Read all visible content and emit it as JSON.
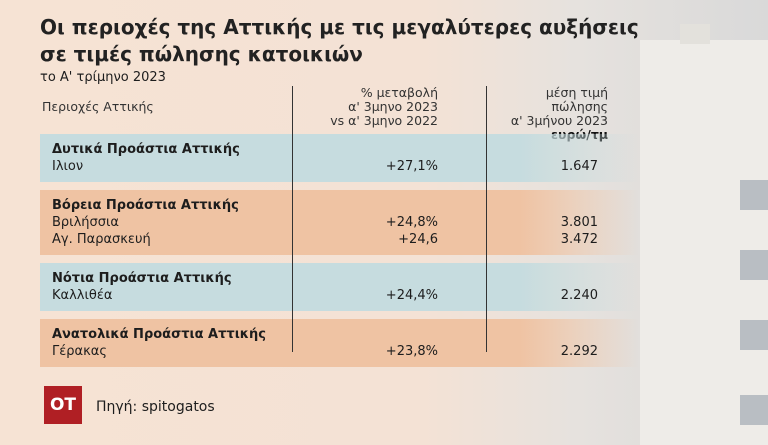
{
  "header": {
    "title": "Οι περιοχές της Αττικής με τις μεγαλύτερες αυξήσεις σε τιμές πώλησης κατοικιών",
    "subtitle": "το Α' τρίμηνο 2023"
  },
  "table": {
    "columns": [
      "Περιοχές Αττικής",
      [
        "% μεταβολή",
        "α' 3μηνο 2023",
        "vs α' 3μηνο 2022"
      ],
      [
        "μέση τιμή",
        "πώλησης",
        "α' 3μήνου 2023",
        "ευρώ/τμ"
      ]
    ],
    "groups": [
      {
        "name": "Δυτικά Προάστια Αττικής",
        "rows": [
          [
            "Ιλιον",
            "+27,1%",
            "1.647"
          ]
        ]
      },
      {
        "name": "Βόρεια Προάστια Αττικής",
        "rows": [
          [
            "Βριλήσσια",
            "+24,8%",
            "3.801"
          ],
          [
            "Αγ. Παρασκευή",
            "+24,6",
            "3.472"
          ]
        ]
      },
      {
        "name": "Νότια Προάστια Αττικής",
        "rows": [
          [
            "Καλλιθέα",
            "+24,4%",
            "2.240"
          ]
        ]
      },
      {
        "name": "Ανατολικά Προάστια Αττικής",
        "rows": [
          [
            "Γέρακας",
            "+23,8%",
            "2.292"
          ]
        ]
      }
    ]
  },
  "footer": {
    "logo": "OT",
    "source": "Πηγή: spitogatos"
  }
}
